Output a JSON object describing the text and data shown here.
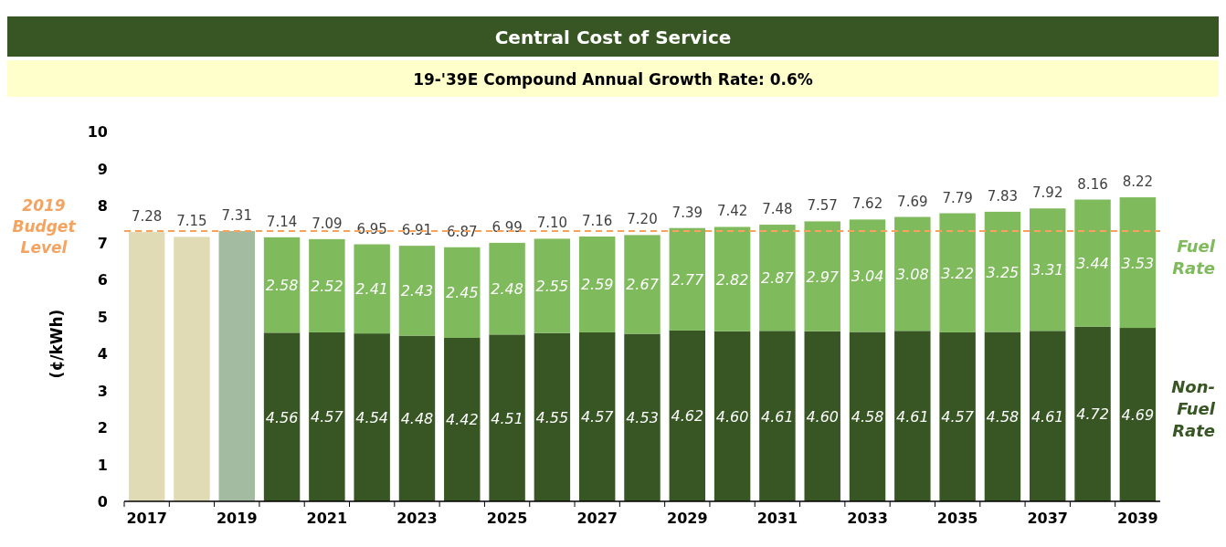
{
  "chart_data": {
    "type": "bar",
    "stacked": true,
    "title": "Central Cost of Service",
    "subtitle": "19-'39E Compound Annual Growth Rate: 0.6%",
    "ylabel": "(¢/kWh)",
    "categories": [
      "2017",
      null,
      "2019",
      null,
      "2021",
      null,
      "2023",
      null,
      "2025",
      null,
      "2027",
      null,
      "2029",
      null,
      "2031",
      null,
      "2033",
      null,
      "2035",
      null,
      "2037",
      null,
      "2039"
    ],
    "series": [
      {
        "colors": [
          "#e0dbb5",
          "#e0dbb5",
          "#a3bba0",
          null,
          null,
          null,
          null,
          null,
          null,
          null,
          null,
          null,
          null,
          null,
          null,
          null,
          null,
          null,
          null,
          null,
          null,
          null,
          null
        ],
        "values": [
          7.28,
          7.15,
          7.31,
          null,
          null,
          null,
          null,
          null,
          null,
          null,
          null,
          null,
          null,
          null,
          null,
          null,
          null,
          null,
          null,
          null,
          null,
          null,
          null
        ]
      },
      {
        "name": "Non-Fuel Rate",
        "color": "#375623",
        "values": [
          null,
          null,
          null,
          4.56,
          4.57,
          4.54,
          4.48,
          4.42,
          4.51,
          4.55,
          4.57,
          4.53,
          4.62,
          4.6,
          4.61,
          4.6,
          4.58,
          4.61,
          4.57,
          4.58,
          4.61,
          4.72,
          4.69
        ],
        "value_labels": [
          null,
          null,
          null,
          "4.56",
          "4.57",
          "4.54",
          "4.48",
          "4.42",
          "4.51",
          "4.55",
          "4.57",
          "4.53",
          "4.62",
          "4.60",
          "4.61",
          "4.60",
          "4.58",
          "4.61",
          "4.57",
          "4.58",
          "4.61",
          "4.72",
          "4.69"
        ]
      },
      {
        "name": "Fuel Rate",
        "color": "#7fba5c",
        "values": [
          null,
          null,
          null,
          2.58,
          2.52,
          2.41,
          2.43,
          2.45,
          2.48,
          2.55,
          2.59,
          2.67,
          2.77,
          2.82,
          2.87,
          2.97,
          3.04,
          3.08,
          3.22,
          3.25,
          3.31,
          3.44,
          3.53
        ],
        "value_labels": [
          null,
          null,
          null,
          "2.58",
          "2.52",
          "2.41",
          "2.43",
          "2.45",
          "2.48",
          "2.55",
          "2.59",
          "2.67",
          "2.77",
          "2.82",
          "2.87",
          "2.97",
          "3.04",
          "3.08",
          "3.22",
          "3.25",
          "3.31",
          "3.44",
          "3.53"
        ]
      }
    ],
    "totals": [
      "7.28",
      "7.15",
      "7.31",
      "7.14",
      "7.09",
      "6.95",
      "6.91",
      "6.87",
      "6.99",
      "7.10",
      "7.16",
      "7.20",
      "7.39",
      "7.42",
      "7.48",
      "7.57",
      "7.62",
      "7.69",
      "7.79",
      "7.83",
      "7.92",
      "8.16",
      "8.22"
    ],
    "ylim": [
      0,
      10
    ],
    "yticks": [
      0,
      1,
      2,
      3,
      4,
      5,
      6,
      7,
      8,
      9,
      10
    ],
    "grid": false,
    "legend": false,
    "ref_lines": [
      {
        "axis": "y",
        "value": 7.31,
        "label": "2019 Budget Level",
        "color": "#f4a460",
        "line_style": "dashed"
      }
    ]
  }
}
